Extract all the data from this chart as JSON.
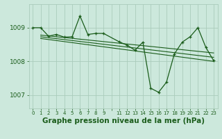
{
  "bg_color": "#cce8dc",
  "grid_color": "#aaccbb",
  "line_color": "#1a5c1a",
  "title": "Graphe pression niveau de la mer (hPa)",
  "ylim": [
    1006.6,
    1009.7
  ],
  "yticks": [
    1007,
    1008,
    1009
  ],
  "title_fontsize": 7.5,
  "series": {
    "main": {
      "x": [
        0,
        1,
        2,
        3,
        4,
        5,
        6,
        7,
        8,
        9,
        11,
        12,
        13,
        14,
        15,
        16,
        17,
        18,
        19,
        20,
        21,
        22,
        23
      ],
      "y": [
        1009.0,
        1009.0,
        1008.75,
        1008.8,
        1008.72,
        1008.73,
        1009.35,
        1008.8,
        1008.83,
        1008.83,
        1008.58,
        1008.48,
        1008.33,
        1008.57,
        1007.2,
        1007.08,
        1007.38,
        1008.22,
        1008.57,
        1008.73,
        1009.0,
        1008.42,
        1008.02
      ]
    },
    "trend1": {
      "x": [
        1,
        23
      ],
      "y": [
        1008.78,
        1008.25
      ]
    },
    "trend2": {
      "x": [
        1,
        23
      ],
      "y": [
        1008.73,
        1008.12
      ]
    },
    "trend3": {
      "x": [
        1,
        23
      ],
      "y": [
        1008.68,
        1008.0
      ]
    }
  },
  "xtick_labels": [
    "0",
    "1",
    "2",
    "3",
    "4",
    "5",
    "6",
    "7",
    "8",
    "9",
    "",
    "11",
    "12",
    "13",
    "14",
    "15",
    "16",
    "17",
    "18",
    "19",
    "20",
    "21",
    "22",
    "23"
  ]
}
